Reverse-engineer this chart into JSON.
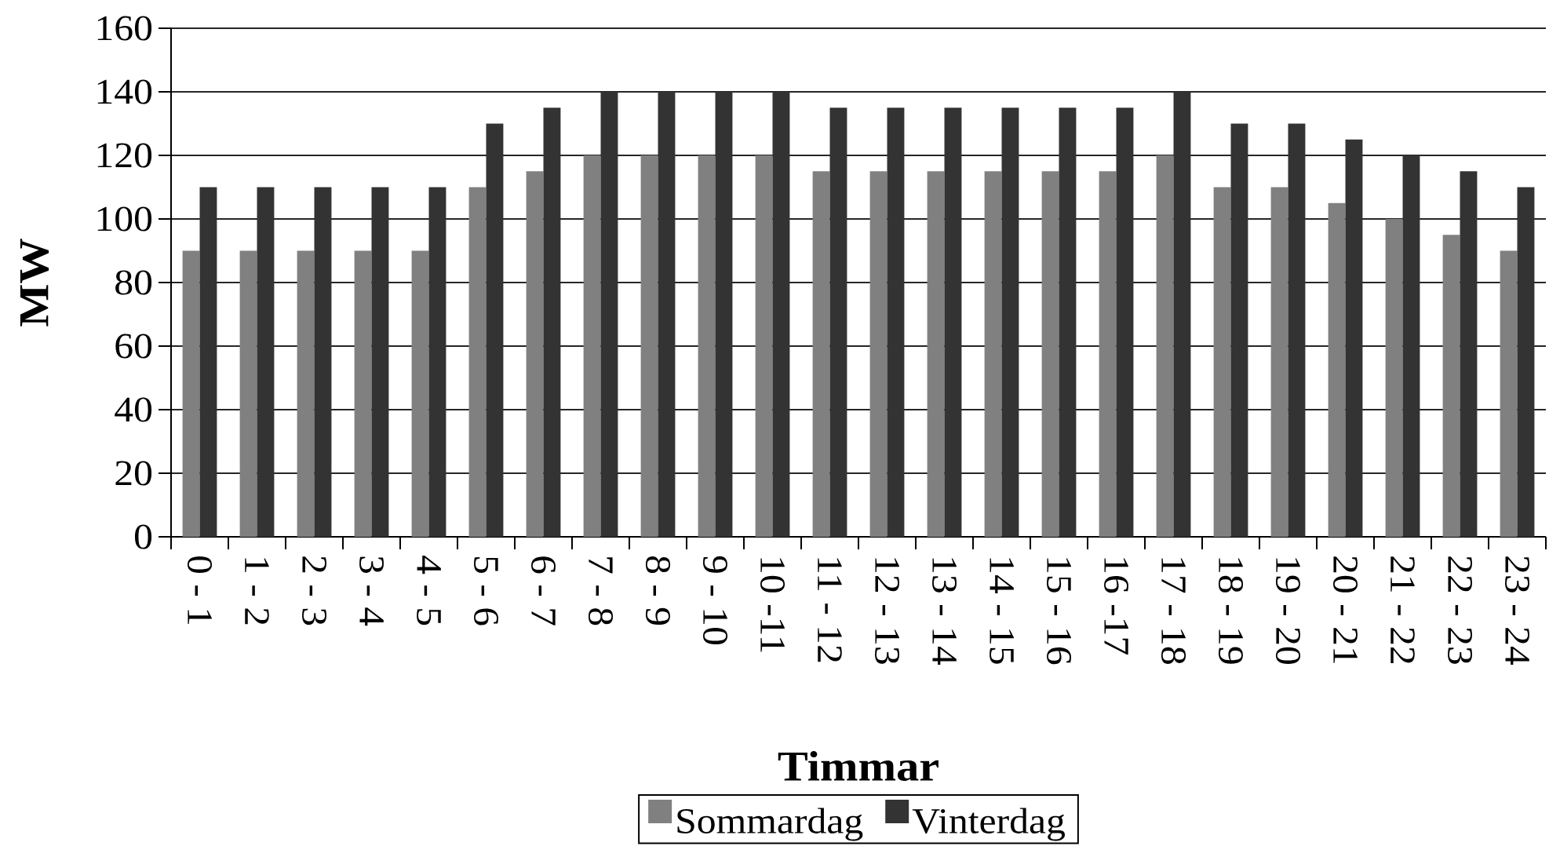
{
  "chart_data": {
    "type": "bar",
    "xlabel": "Timmar",
    "ylabel": "MW",
    "categories": [
      "0 - 1",
      "1 - 2",
      "2 - 3",
      "3 - 4",
      "4 - 5",
      "5 - 6",
      "6 - 7",
      "7 - 8",
      "8 - 9",
      "9 - 10",
      "10 -11",
      "11 - 12",
      "12 - 13",
      "13 - 14",
      "14 - 15",
      "15 - 16",
      "16 -17",
      "17 - 18",
      "18 - 19",
      "19 - 20",
      "20 - 21",
      "21 - 22",
      "22 - 23",
      "23 - 24"
    ],
    "series": [
      {
        "name": "Sommardag",
        "color": "#808080",
        "values": [
          90,
          90,
          90,
          90,
          90,
          110,
          115,
          120,
          120,
          120,
          120,
          115,
          115,
          115,
          115,
          115,
          115,
          120,
          110,
          110,
          105,
          100,
          95,
          90
        ]
      },
      {
        "name": "Vinterdag",
        "color": "#333333",
        "values": [
          110,
          110,
          110,
          110,
          110,
          130,
          135,
          140,
          140,
          140,
          140,
          135,
          135,
          135,
          135,
          135,
          135,
          140,
          130,
          130,
          125,
          120,
          115,
          110
        ]
      }
    ],
    "ylim": [
      0,
      160
    ],
    "yticks": [
      0,
      20,
      40,
      60,
      80,
      100,
      120,
      140,
      160
    ],
    "grid": "y",
    "legend": "bottom"
  }
}
